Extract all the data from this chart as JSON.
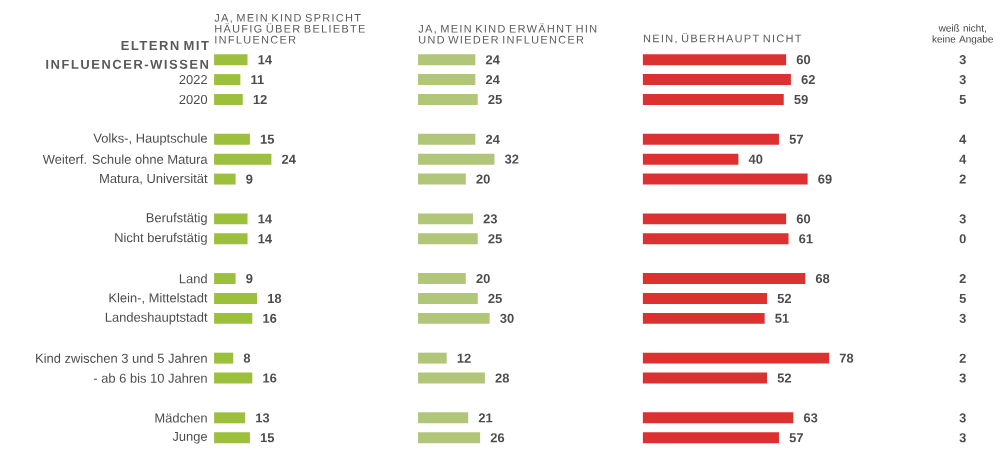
{
  "chart_data": [
    {
      "type": "bar",
      "orientation": "horizontal",
      "title": "JA, MEIN KIND SPRICHT HÄUFIG ÜBER BELIEBTE INFLUENCER",
      "ylabel": "ELTERN MIT INFLUENCER-WISSEN",
      "data_labels": true,
      "tick_labels": "y",
      "color": "#9cbf3c",
      "categories": [
        null,
        "2022",
        "2020",
        null,
        "Volks-, Hauptschule",
        "Weiterf. Schule ohne Matura",
        "Matura, Universität",
        null,
        "Berufstätig",
        "Nicht berufstätig",
        null,
        "Land",
        "Klein-, Mittelstadt",
        "Landeshauptstadt",
        null,
        "Kind zwischen 3 und 5 Jahren",
        "- ab 6 bis 10 Jahren",
        null,
        "Mädchen",
        "Junge"
      ],
      "values": [
        14,
        11,
        12,
        null,
        15,
        24,
        9,
        null,
        14,
        14,
        null,
        9,
        18,
        16,
        null,
        8,
        16,
        null,
        13,
        15
      ]
    },
    {
      "type": "bar",
      "orientation": "horizontal",
      "title": "JA, MEIN KIND ERWÄHNT HIN UND WIEDER INFLUENCER",
      "data_labels": true,
      "color": "#b2c679",
      "categories": [
        null,
        null,
        null,
        null,
        null,
        null,
        null,
        null,
        null,
        null,
        null,
        null,
        null,
        null,
        null,
        null,
        null,
        null,
        null,
        null
      ],
      "values": [
        24,
        24,
        25,
        null,
        24,
        32,
        20,
        null,
        23,
        25,
        null,
        20,
        25,
        30,
        null,
        12,
        28,
        null,
        21,
        26
      ]
    },
    {
      "type": "bar",
      "orientation": "horizontal",
      "title": "NEIN, ÜBERHAUPT NICHT",
      "data_labels": true,
      "color": "#dc3131",
      "categories": [
        null,
        null,
        null,
        null,
        null,
        null,
        null,
        null,
        null,
        null,
        null,
        null,
        null,
        null,
        null,
        null,
        null,
        null,
        null,
        null
      ],
      "values": [
        60,
        62,
        59,
        null,
        57,
        40,
        69,
        null,
        60,
        61,
        null,
        68,
        52,
        51,
        null,
        78,
        52,
        null,
        63,
        57
      ]
    },
    {
      "type": "other",
      "title": "weiß nicht, keine Angabe",
      "data_labels": true,
      "values": [
        3,
        3,
        5,
        null,
        4,
        4,
        2,
        null,
        3,
        0,
        null,
        2,
        5,
        3,
        null,
        2,
        3,
        null,
        3,
        3
      ]
    }
  ]
}
